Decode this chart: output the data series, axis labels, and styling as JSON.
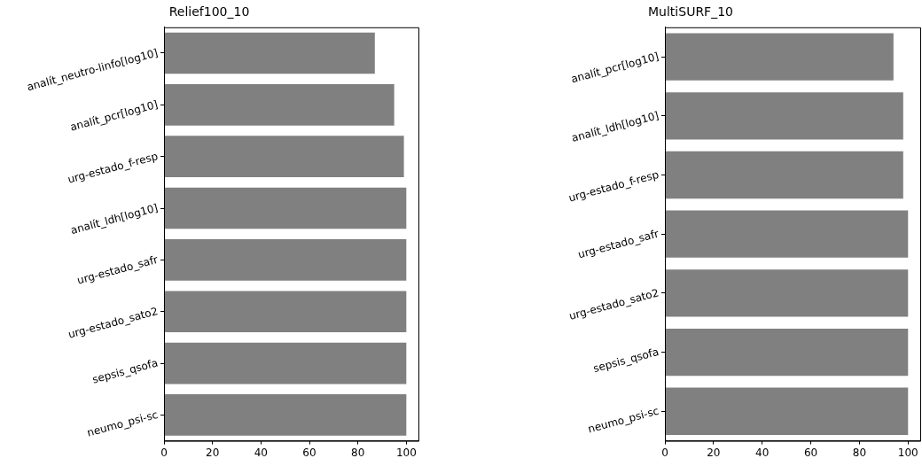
{
  "chart_data": [
    {
      "type": "bar",
      "title": "Relief100_10",
      "orientation": "horizontal",
      "categories": [
        "analít_neutro-linfo[log10]",
        "analít_pcr[log10]",
        "urg-estado_f-resp",
        "analít_ldh[log10]",
        "urg-estado_safr",
        "urg-estado_sato2",
        "sepsis_qsofa",
        "neumo_psi-sc"
      ],
      "values": [
        87,
        95,
        99,
        100,
        100,
        100,
        100,
        100
      ],
      "color": "#808080",
      "xlim": [
        0,
        105
      ],
      "xticks": [
        0,
        20,
        40,
        60,
        80,
        100
      ],
      "grid": false,
      "legend": false
    },
    {
      "type": "bar",
      "title": "MultiSURF_10",
      "orientation": "horizontal",
      "categories": [
        "analít_pcr[log10]",
        "analít_ldh[log10]",
        "urg-estado_f-resp",
        "urg-estado_safr",
        "urg-estado_sato2",
        "sepsis_qsofa",
        "neumo_psi-sc"
      ],
      "values": [
        94,
        98,
        98,
        100,
        100,
        100,
        100
      ],
      "color": "#808080",
      "xlim": [
        0,
        105
      ],
      "xticks": [
        0,
        20,
        40,
        60,
        80,
        100
      ],
      "grid": false,
      "legend": false
    }
  ]
}
